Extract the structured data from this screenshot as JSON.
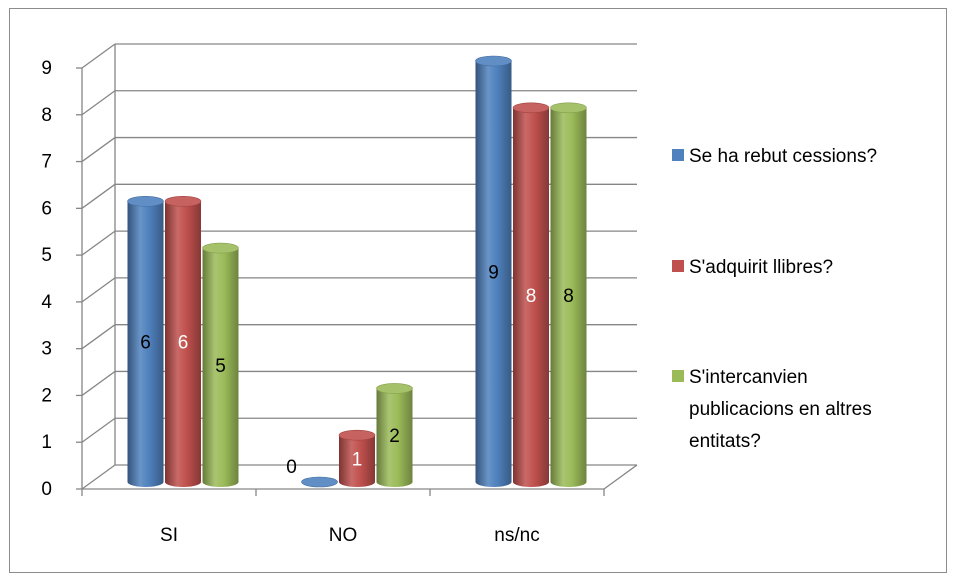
{
  "chart_data": {
    "type": "bar",
    "title": "",
    "xlabel": "",
    "ylabel": "",
    "categories": [
      "SI",
      "NO",
      "ns/nc"
    ],
    "ylim": [
      0,
      9
    ],
    "yticks": [
      "0",
      "1",
      "2",
      "3",
      "4",
      "5",
      "6",
      "7",
      "8",
      "9"
    ],
    "grid": true,
    "legend_position": "right",
    "series": [
      {
        "name": "Se ha rebut cessions?",
        "values": [
          6,
          0,
          9
        ],
        "color": "#4f81bd",
        "label_color": "#000000"
      },
      {
        "name": "S'adquirit llibres?",
        "values": [
          6,
          1,
          8
        ],
        "color": "#c0504d",
        "label_color": "#ffffff"
      },
      {
        "name": "S'intercanvien publicacions en altres entitats?",
        "values": [
          5,
          2,
          8
        ],
        "color": "#9bbb59",
        "label_color": "#000000"
      }
    ],
    "legend_lines": [
      [
        "Se ha rebut cessions?"
      ],
      [
        "S'adquirit llibres?"
      ],
      [
        "S'intercanvien",
        "publicacions en altres",
        "entitats?"
      ]
    ]
  }
}
